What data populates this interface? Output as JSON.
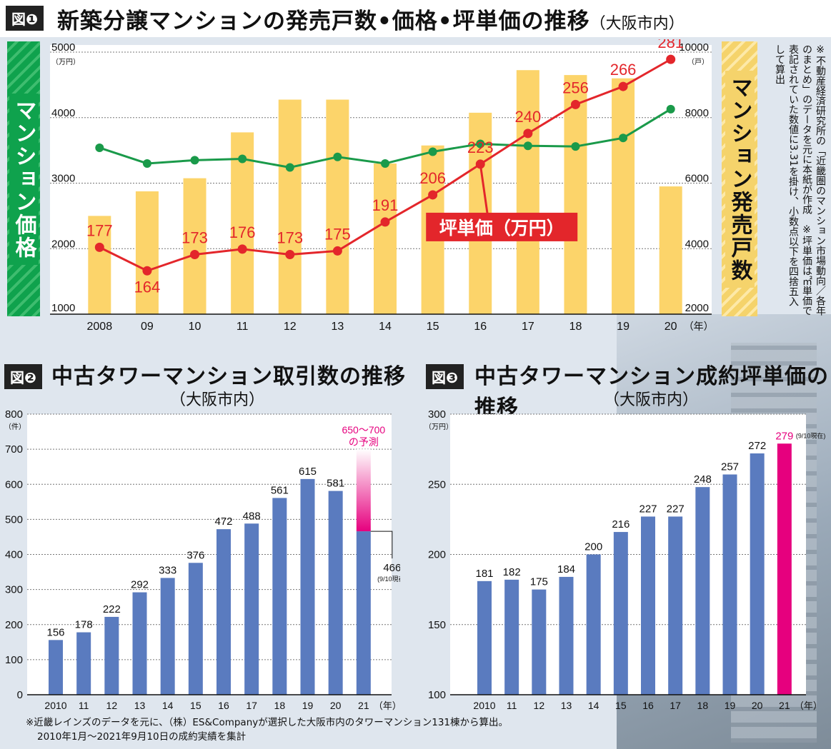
{
  "figure1": {
    "tag": "図❶",
    "title": "新築分譲マンションの発売戸数•価格•坪単価の推移",
    "title_suffix": "（大阪市内）",
    "left_band": "マンション価格",
    "right_band": "マンション発売戸数",
    "left_unit": "（万円）",
    "right_unit": "（戸）",
    "x_unit": "（年）",
    "series_label": "坪単価（万円）",
    "note": "※不動産経済研究所の「近畿圏のマンション市場動向／各年のまとめ」のデータを元に本紙が作成　※坪単価は㎡単価で表記されていた数値に3.31を掛け、小数点以下を四捨五入して算出",
    "colors": {
      "bars": "#fcd46a",
      "price_line": "#1a9a4a",
      "tsubo_line": "#e3262b",
      "left_band": "#0fa24d",
      "right_band": "#f5d36b"
    }
  },
  "figure2": {
    "tag": "図❷",
    "title": "中古タワーマンション取引数の推移",
    "subtitle": "（大阪市内）",
    "y_unit": "（件）",
    "x_unit": "（年）",
    "forecast_label_1": "650～700",
    "forecast_label_2": "の予測",
    "current_label": "466",
    "current_note": "(9/10現在)",
    "colors": {
      "bars": "#5a7bbf",
      "forecast": "#e6007e"
    }
  },
  "figure3": {
    "tag": "図❸",
    "title": "中古タワーマンション成約坪単価の推移",
    "subtitle": "（大阪市内）",
    "y_unit": "（万円）",
    "x_unit": "（年）",
    "last_note": "(9/10現在)",
    "colors": {
      "bars": "#5a7bbf",
      "highlight": "#e6007e"
    }
  },
  "footnote_1": "※近畿レインズのデータを元に、（株）ES&Companyが選択した大阪市内のタワーマンション131棟から算出。",
  "footnote_2": "2010年1月～2021年9月10日の成約実績を集計",
  "chart_data": [
    {
      "type": "bar",
      "name": "fig1",
      "categories": [
        "2008",
        "09",
        "10",
        "11",
        "12",
        "13",
        "14",
        "15",
        "16",
        "17",
        "18",
        "19",
        "20"
      ],
      "series": [
        {
          "name": "マンション発売戸数",
          "axis": "right",
          "values": [
            5000,
            5750,
            6150,
            7550,
            8550,
            8550,
            6600,
            7150,
            8150,
            9450,
            9300,
            9200,
            5900
          ]
        },
        {
          "name": "マンション価格",
          "axis": "left",
          "values": [
            3540,
            3300,
            3350,
            3370,
            3240,
            3400,
            3300,
            3480,
            3600,
            3570,
            3560,
            3690,
            4130
          ]
        },
        {
          "name": "坪単価（万円）",
          "axis": "left",
          "values": [
            177,
            164,
            173,
            176,
            173,
            175,
            191,
            206,
            223,
            240,
            256,
            266,
            281
          ]
        }
      ],
      "left_axis": {
        "ylim": [
          1000,
          5000
        ],
        "ticks": [
          1000,
          2000,
          3000,
          4000,
          5000
        ]
      },
      "right_axis": {
        "ylim": [
          2000,
          10000
        ],
        "ticks": [
          2000,
          4000,
          6000,
          8000,
          10000
        ]
      }
    },
    {
      "type": "bar",
      "name": "fig2",
      "categories": [
        "2010",
        "11",
        "12",
        "13",
        "14",
        "15",
        "16",
        "17",
        "18",
        "19",
        "20",
        "21"
      ],
      "values": [
        156,
        178,
        222,
        292,
        333,
        376,
        472,
        488,
        561,
        615,
        581,
        466
      ],
      "forecast_range": [
        650,
        700
      ],
      "ylim": [
        0,
        800
      ],
      "yticks": [
        0,
        100,
        200,
        300,
        400,
        500,
        600,
        700,
        800
      ]
    },
    {
      "type": "bar",
      "name": "fig3",
      "categories": [
        "2010",
        "11",
        "12",
        "13",
        "14",
        "15",
        "16",
        "17",
        "18",
        "19",
        "20",
        "21"
      ],
      "values": [
        181,
        182,
        175,
        184,
        200,
        216,
        227,
        227,
        248,
        257,
        272,
        279
      ],
      "ylim": [
        100,
        300
      ],
      "yticks": [
        100,
        150,
        200,
        250,
        300
      ]
    }
  ]
}
